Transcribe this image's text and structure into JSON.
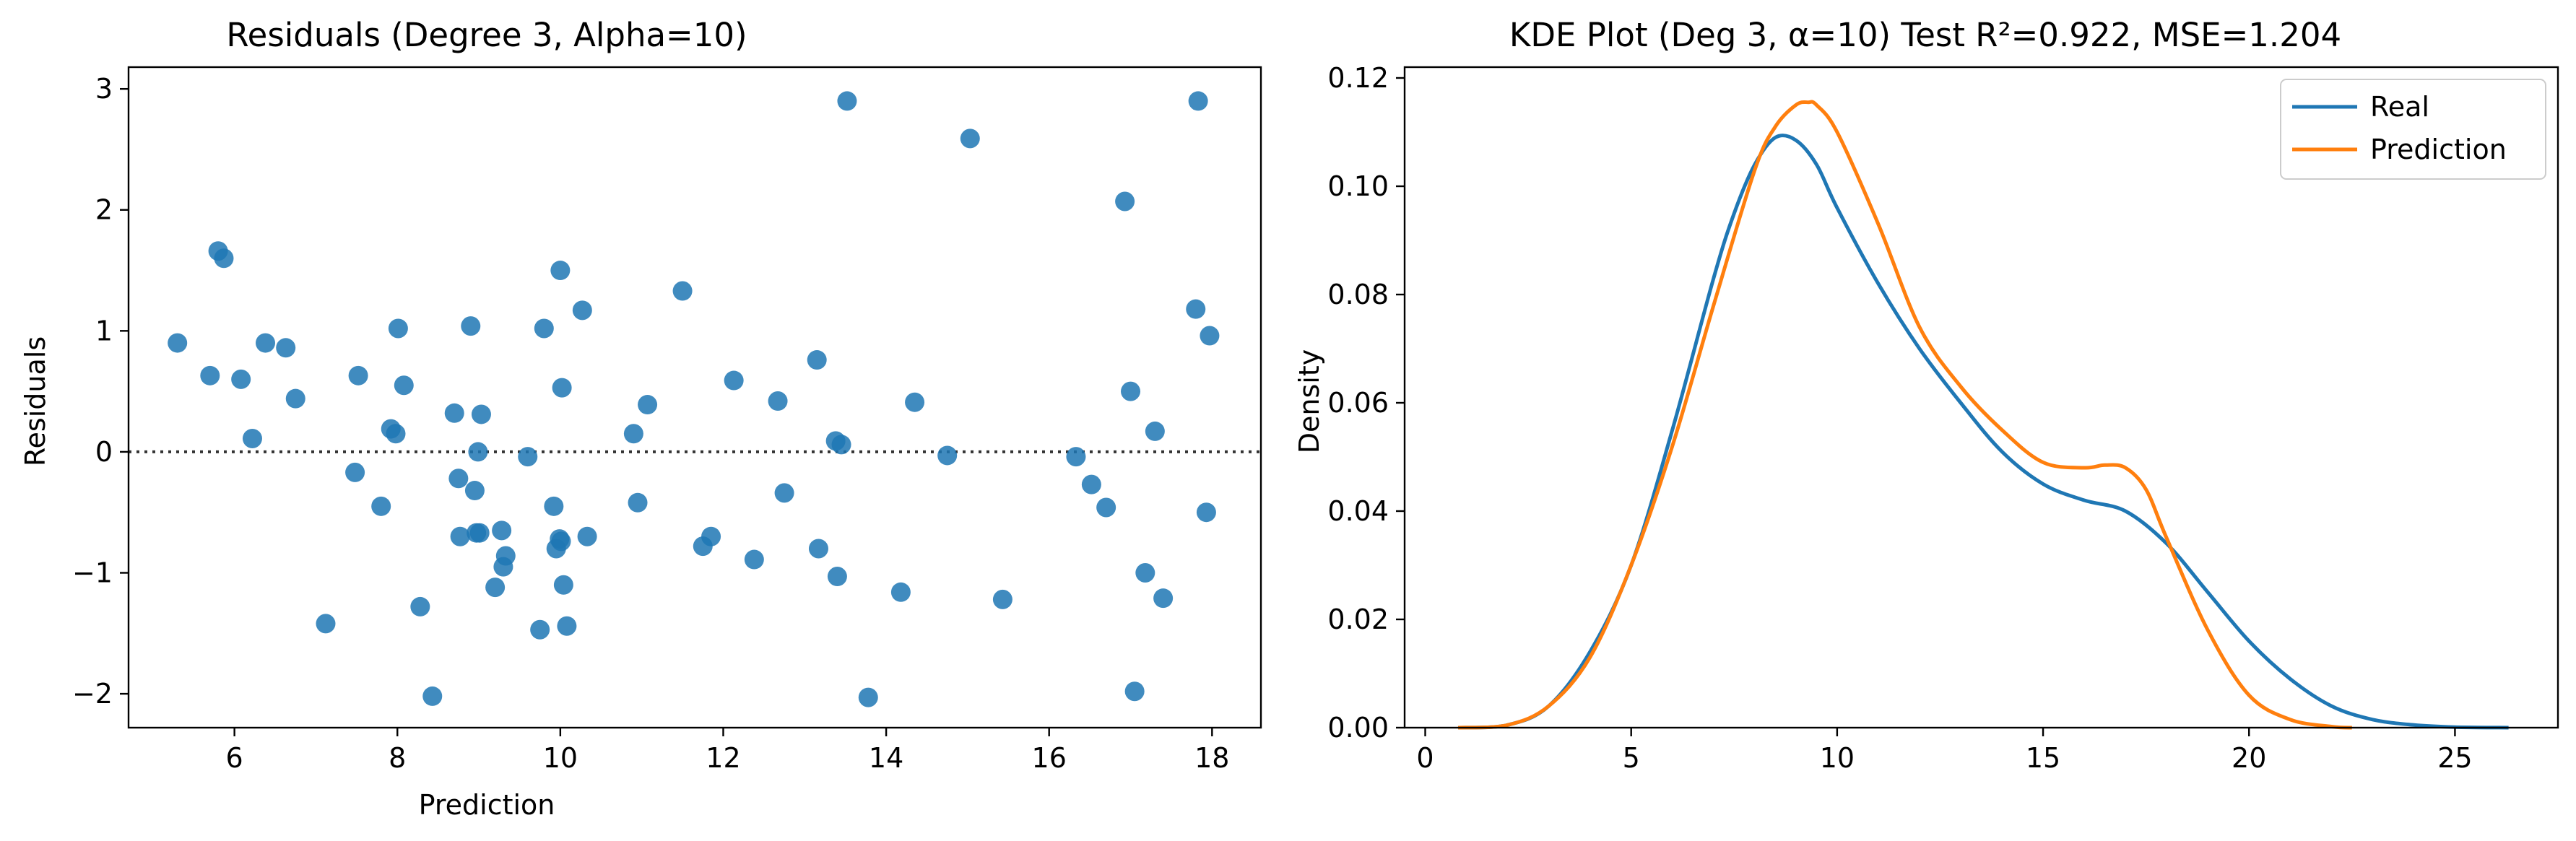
{
  "chart_data": [
    {
      "type": "scatter",
      "title": "Residuals (Degree 3, Alpha=10)",
      "xlabel": "Prediction",
      "ylabel": "Residuals",
      "xlim": [
        4.7,
        18.6
      ],
      "ylim": [
        -2.28,
        3.18
      ],
      "xticks": [
        6,
        8,
        10,
        12,
        14,
        16,
        18
      ],
      "yticks": [
        -2,
        -1,
        0,
        1,
        2,
        3
      ],
      "ytick_labels": [
        "−2",
        "−1",
        "0",
        "1",
        "2",
        "3"
      ],
      "reference_line": {
        "y": 0,
        "style": "dotted",
        "color": "#333333"
      },
      "color": "#1f77b4",
      "grid": false,
      "points": [
        [
          5.3,
          0.9
        ],
        [
          5.7,
          0.63
        ],
        [
          5.8,
          1.66
        ],
        [
          5.87,
          1.6
        ],
        [
          6.08,
          0.6
        ],
        [
          6.22,
          0.11
        ],
        [
          6.38,
          0.9
        ],
        [
          6.63,
          0.86
        ],
        [
          6.75,
          0.44
        ],
        [
          7.12,
          -1.42
        ],
        [
          7.48,
          -0.17
        ],
        [
          7.52,
          0.63
        ],
        [
          7.8,
          -0.45
        ],
        [
          7.92,
          0.19
        ],
        [
          7.98,
          0.15
        ],
        [
          8.01,
          1.02
        ],
        [
          8.08,
          0.55
        ],
        [
          8.28,
          -1.28
        ],
        [
          8.43,
          -2.02
        ],
        [
          8.7,
          0.32
        ],
        [
          8.75,
          -0.22
        ],
        [
          8.77,
          -0.7
        ],
        [
          8.9,
          1.04
        ],
        [
          8.95,
          -0.32
        ],
        [
          8.97,
          -0.67
        ],
        [
          8.99,
          0.0
        ],
        [
          9.01,
          -0.67
        ],
        [
          9.03,
          0.31
        ],
        [
          9.2,
          -1.12
        ],
        [
          9.28,
          -0.65
        ],
        [
          9.3,
          -0.95
        ],
        [
          9.33,
          -0.86
        ],
        [
          9.6,
          -0.04
        ],
        [
          9.75,
          -1.47
        ],
        [
          9.8,
          1.02
        ],
        [
          9.92,
          -0.45
        ],
        [
          9.95,
          -0.8
        ],
        [
          9.99,
          -0.72
        ],
        [
          10.0,
          1.5
        ],
        [
          10.01,
          -0.74
        ],
        [
          10.02,
          0.53
        ],
        [
          10.04,
          -1.1
        ],
        [
          10.08,
          -1.44
        ],
        [
          10.27,
          1.17
        ],
        [
          10.33,
          -0.7
        ],
        [
          10.9,
          0.15
        ],
        [
          10.95,
          -0.42
        ],
        [
          11.07,
          0.39
        ],
        [
          11.5,
          1.33
        ],
        [
          11.75,
          -0.78
        ],
        [
          11.85,
          -0.7
        ],
        [
          12.13,
          0.59
        ],
        [
          12.38,
          -0.89
        ],
        [
          12.67,
          0.42
        ],
        [
          12.75,
          -0.34
        ],
        [
          13.15,
          0.76
        ],
        [
          13.17,
          -0.8
        ],
        [
          13.38,
          0.09
        ],
        [
          13.4,
          -1.03
        ],
        [
          13.45,
          0.06
        ],
        [
          13.52,
          2.9
        ],
        [
          13.78,
          -2.03
        ],
        [
          14.18,
          -1.16
        ],
        [
          14.35,
          0.41
        ],
        [
          14.75,
          -0.03
        ],
        [
          15.03,
          2.59
        ],
        [
          15.43,
          -1.22
        ],
        [
          16.33,
          -0.04
        ],
        [
          16.52,
          -0.27
        ],
        [
          16.7,
          -0.46
        ],
        [
          16.93,
          2.07
        ],
        [
          17.0,
          0.5
        ],
        [
          17.05,
          -1.98
        ],
        [
          17.18,
          -1.0
        ],
        [
          17.3,
          0.17
        ],
        [
          17.4,
          -1.21
        ],
        [
          17.8,
          1.18
        ],
        [
          17.83,
          2.9
        ],
        [
          17.93,
          -0.5
        ],
        [
          17.97,
          0.96
        ]
      ]
    },
    {
      "type": "line",
      "title": "KDE Plot (Deg 3, α=10) Test R²=0.922, MSE=1.204",
      "xlabel": "",
      "ylabel": "Density",
      "xlim": [
        -0.5,
        27.5
      ],
      "ylim": [
        0,
        0.122
      ],
      "xticks": [
        0,
        5,
        10,
        15,
        20,
        25
      ],
      "yticks": [
        0.0,
        0.02,
        0.04,
        0.06,
        0.08,
        0.1,
        0.12
      ],
      "ytick_labels": [
        "0.00",
        "0.02",
        "0.04",
        "0.06",
        "0.08",
        "0.10",
        "0.12"
      ],
      "grid": false,
      "legend": {
        "position": "top-right"
      },
      "series": [
        {
          "name": "Real",
          "color": "#1f77b4",
          "points": [
            [
              0.8,
              0.0
            ],
            [
              2.0,
              0.0005
            ],
            [
              3.0,
              0.004
            ],
            [
              4.0,
              0.014
            ],
            [
              5.0,
              0.03
            ],
            [
              6.0,
              0.055
            ],
            [
              7.0,
              0.083
            ],
            [
              7.5,
              0.095
            ],
            [
              8.0,
              0.104
            ],
            [
              8.5,
              0.109
            ],
            [
              9.0,
              0.1085
            ],
            [
              9.5,
              0.104
            ],
            [
              10.0,
              0.096
            ],
            [
              11.0,
              0.082
            ],
            [
              12.0,
              0.07
            ],
            [
              13.0,
              0.06
            ],
            [
              14.0,
              0.051
            ],
            [
              15.0,
              0.045
            ],
            [
              16.0,
              0.042
            ],
            [
              17.0,
              0.04
            ],
            [
              18.0,
              0.034
            ],
            [
              19.0,
              0.025
            ],
            [
              20.0,
              0.016
            ],
            [
              21.0,
              0.009
            ],
            [
              22.0,
              0.004
            ],
            [
              23.0,
              0.0015
            ],
            [
              24.0,
              0.0005
            ],
            [
              25.0,
              0.0001
            ],
            [
              26.3,
              0.0
            ]
          ]
        },
        {
          "name": "Prediction",
          "color": "#ff7f0e",
          "points": [
            [
              0.8,
              0.0
            ],
            [
              2.0,
              0.0005
            ],
            [
              3.0,
              0.004
            ],
            [
              4.0,
              0.013
            ],
            [
              5.0,
              0.03
            ],
            [
              6.0,
              0.052
            ],
            [
              7.0,
              0.078
            ],
            [
              8.0,
              0.103
            ],
            [
              8.5,
              0.111
            ],
            [
              9.0,
              0.115
            ],
            [
              9.3,
              0.1155
            ],
            [
              9.5,
              0.115
            ],
            [
              10.0,
              0.11
            ],
            [
              11.0,
              0.093
            ],
            [
              12.0,
              0.074
            ],
            [
              13.0,
              0.063
            ],
            [
              14.0,
              0.055
            ],
            [
              15.0,
              0.049
            ],
            [
              16.0,
              0.048
            ],
            [
              16.5,
              0.0485
            ],
            [
              17.0,
              0.048
            ],
            [
              17.5,
              0.044
            ],
            [
              18.0,
              0.035
            ],
            [
              19.0,
              0.018
            ],
            [
              20.0,
              0.006
            ],
            [
              21.0,
              0.0015
            ],
            [
              22.0,
              0.0002
            ],
            [
              22.5,
              0.0
            ]
          ]
        }
      ]
    }
  ]
}
